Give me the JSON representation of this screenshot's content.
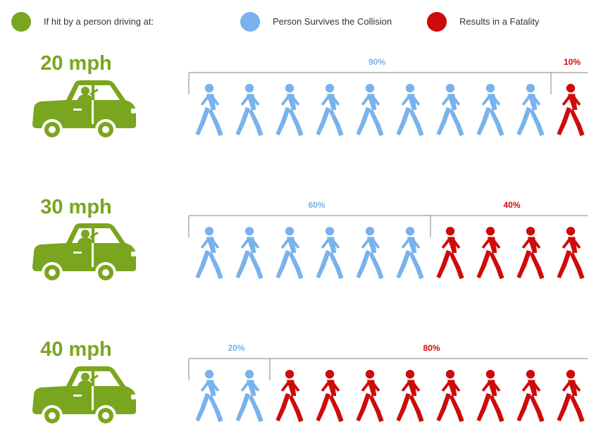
{
  "legend": {
    "speed": {
      "label": "If hit by a person driving at:",
      "color": "#7aa51f"
    },
    "survive": {
      "label": "Person Survives the Collision",
      "color": "#79b2ec"
    },
    "fatal": {
      "label": "Results in a Fatality",
      "color": "#cf0a0a"
    }
  },
  "chart_data": {
    "type": "pictograph",
    "units_per_icon": 10,
    "total_icons": 10,
    "categories": [
      "20 mph",
      "30 mph",
      "40 mph"
    ],
    "series": [
      {
        "name": "Person Survives the Collision",
        "values": [
          90,
          60,
          20
        ],
        "labels": [
          "90%",
          "60%",
          "20%"
        ],
        "color": "#79b2ec"
      },
      {
        "name": "Results in a Fatality",
        "values": [
          10,
          40,
          80
        ],
        "labels": [
          "10%",
          "40%",
          "80%"
        ],
        "color": "#cf0a0a"
      }
    ]
  },
  "rows": [
    {
      "speed": "20 mph",
      "survive_label": "90%",
      "fatal_label": "10%"
    },
    {
      "speed": "30 mph",
      "survive_label": "60%",
      "fatal_label": "40%"
    },
    {
      "speed": "40 mph",
      "survive_label": "20%",
      "fatal_label": "80%"
    }
  ],
  "icons": {
    "car": "car-with-driver-icon",
    "person": "walking-person-icon"
  }
}
